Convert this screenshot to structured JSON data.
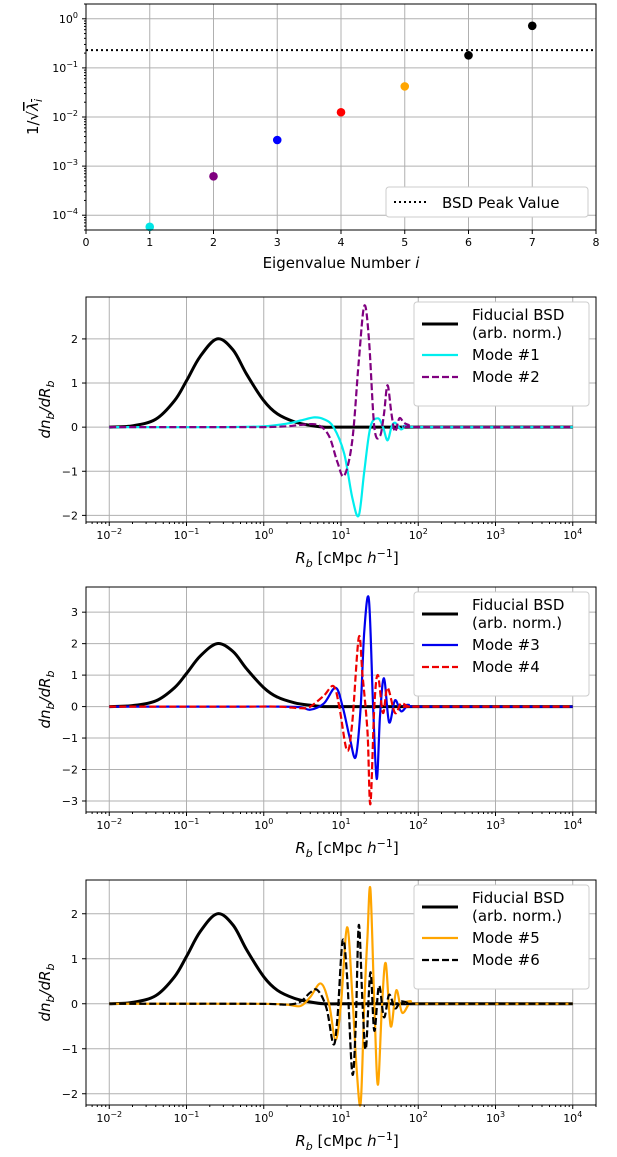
{
  "chart_data": [
    {
      "type": "scatter",
      "xlabel_prefix": "Eigenvalue Number ",
      "xlabel_var": "i",
      "ylabel": "1/√λᵢ",
      "xlim": [
        0,
        8
      ],
      "ylim": [
        5e-05,
        2
      ],
      "yscale": "log",
      "x_ticks": [
        "0",
        "1",
        "2",
        "3",
        "4",
        "5",
        "6",
        "7",
        "8"
      ],
      "y_ticks": [
        {
          "value": 1,
          "mant": "10",
          "exp": "0"
        },
        {
          "value": 0.1,
          "mant": "10",
          "exp": "−1"
        },
        {
          "value": 0.01,
          "mant": "10",
          "exp": "−2"
        },
        {
          "value": 0.001,
          "mant": "10",
          "exp": "−3"
        },
        {
          "value": 0.0001,
          "mant": "10",
          "exp": "−4"
        }
      ],
      "grid": true,
      "points": [
        {
          "x": 1,
          "y": 5.8e-05,
          "color": "#00e5e5"
        },
        {
          "x": 2,
          "y": 0.00062,
          "color": "#800080"
        },
        {
          "x": 3,
          "y": 0.0034,
          "color": "#0000ff"
        },
        {
          "x": 4,
          "y": 0.0125,
          "color": "#ff0000"
        },
        {
          "x": 5,
          "y": 0.042,
          "color": "#ffa500"
        },
        {
          "x": 6,
          "y": 0.18,
          "color": "#000000"
        },
        {
          "x": 7,
          "y": 0.72,
          "color": "#000000"
        }
      ],
      "hline": {
        "y": 0.23,
        "style": "dotted",
        "color": "#000000"
      },
      "legend": {
        "position": "lower-right",
        "entries": [
          {
            "label": "BSD Peak Value",
            "style": "dotted",
            "color": "#000000"
          }
        ]
      }
    },
    {
      "type": "line",
      "xscale": "log",
      "xlim": [
        0.005,
        20000
      ],
      "ylim": [
        -2.15,
        2.95
      ],
      "x_ticks": [
        {
          "mant": "10",
          "exp": "−2"
        },
        {
          "mant": "10",
          "exp": "−1"
        },
        {
          "mant": "10",
          "exp": "0"
        },
        {
          "mant": "10",
          "exp": "1"
        },
        {
          "mant": "10",
          "exp": "2"
        },
        {
          "mant": "10",
          "exp": "3"
        },
        {
          "mant": "10",
          "exp": "4"
        }
      ],
      "y_ticks": [
        "−2",
        "−1",
        "0",
        "1",
        "2"
      ],
      "ylabel": "dnb/dRb",
      "xlabel": "Rb [cMpc h−1]",
      "grid": true,
      "legend": {
        "position": "top-right",
        "entries": [
          {
            "label": "Fiducial BSD",
            "label2": "(arb. norm.)",
            "color": "#000000",
            "style": "solid"
          },
          {
            "label": "Mode #1",
            "color": "#00eeee",
            "style": "solid"
          },
          {
            "label": "Mode #2",
            "color": "#800080",
            "style": "dashed"
          }
        ]
      },
      "series": [
        {
          "name": "Fiducial BSD (arb. norm.)",
          "color": "#000000",
          "style": "solid",
          "x": [
            0.01,
            0.02,
            0.04,
            0.07,
            0.1,
            0.15,
            0.25,
            0.4,
            0.6,
            1,
            1.5,
            2.5,
            4,
            6,
            10,
            20,
            100,
            10000
          ],
          "y": [
            0.0,
            0.03,
            0.18,
            0.6,
            1.05,
            1.6,
            2.0,
            1.75,
            1.2,
            0.6,
            0.3,
            0.12,
            0.04,
            0.0,
            0.0,
            0.0,
            0.0,
            0.0
          ]
        },
        {
          "name": "Mode #1",
          "color": "#00eeee",
          "style": "solid",
          "x": [
            0.01,
            0.3,
            1,
            2,
            3,
            4.5,
            6,
            8,
            11,
            14,
            17,
            20,
            24,
            30,
            35,
            40,
            45,
            50,
            60,
            70,
            100,
            10000
          ],
          "y": [
            0.0,
            0.0,
            0.02,
            0.08,
            0.15,
            0.22,
            0.18,
            0.0,
            -0.6,
            -1.6,
            -2.0,
            -1.0,
            0.0,
            0.2,
            0.0,
            -0.3,
            0.0,
            0.1,
            -0.05,
            0.03,
            0.0,
            0.0
          ]
        },
        {
          "name": "Mode #2",
          "color": "#800080",
          "style": "dashed",
          "x": [
            0.01,
            0.3,
            1,
            2,
            3,
            5,
            7,
            9,
            11,
            14,
            17,
            20,
            23,
            27,
            32,
            36,
            40,
            45,
            50,
            57,
            65,
            75,
            100,
            10000
          ],
          "y": [
            0.0,
            0.0,
            0.0,
            0.02,
            0.05,
            0.05,
            -0.2,
            -0.8,
            -1.1,
            -0.3,
            1.5,
            2.75,
            2.0,
            0.0,
            -0.2,
            0.3,
            0.95,
            0.3,
            -0.1,
            0.2,
            0.1,
            0.05,
            0.0,
            0.0
          ]
        }
      ]
    },
    {
      "type": "line",
      "xscale": "log",
      "xlim": [
        0.005,
        20000
      ],
      "ylim": [
        -3.35,
        3.8
      ],
      "x_ticks": [
        {
          "mant": "10",
          "exp": "−2"
        },
        {
          "mant": "10",
          "exp": "−1"
        },
        {
          "mant": "10",
          "exp": "0"
        },
        {
          "mant": "10",
          "exp": "1"
        },
        {
          "mant": "10",
          "exp": "2"
        },
        {
          "mant": "10",
          "exp": "3"
        },
        {
          "mant": "10",
          "exp": "4"
        }
      ],
      "y_ticks": [
        "−3",
        "−2",
        "−1",
        "0",
        "1",
        "2",
        "3"
      ],
      "ylabel": "dnb/dRb",
      "xlabel": "Rb [cMpc h−1]",
      "grid": true,
      "legend": {
        "position": "top-right",
        "entries": [
          {
            "label": "Fiducial BSD",
            "label2": "(arb. norm.)",
            "color": "#000000",
            "style": "solid"
          },
          {
            "label": "Mode #3",
            "color": "#0000ee",
            "style": "solid"
          },
          {
            "label": "Mode #4",
            "color": "#ee0000",
            "style": "dashed"
          }
        ]
      },
      "series": [
        {
          "name": "Fiducial BSD (arb. norm.)",
          "color": "#000000",
          "style": "solid",
          "x": [
            0.01,
            0.02,
            0.04,
            0.07,
            0.1,
            0.15,
            0.25,
            0.4,
            0.6,
            1,
            1.5,
            2.5,
            4,
            6,
            10,
            20,
            100,
            10000
          ],
          "y": [
            0.0,
            0.03,
            0.18,
            0.6,
            1.05,
            1.6,
            2.0,
            1.75,
            1.2,
            0.6,
            0.3,
            0.12,
            0.04,
            0.0,
            0.0,
            0.0,
            0.0,
            0.0
          ]
        },
        {
          "name": "Mode #3",
          "color": "#0000ee",
          "style": "solid",
          "x": [
            0.01,
            0.5,
            1.5,
            3,
            4,
            6,
            8.5,
            10.5,
            13,
            15.5,
            18,
            20,
            23,
            26,
            29,
            32,
            36,
            42,
            50,
            60,
            75,
            100,
            10000
          ],
          "y": [
            0.0,
            0.0,
            0.0,
            -0.02,
            -0.1,
            0.1,
            0.6,
            0.0,
            -1.0,
            -1.6,
            0.0,
            2.4,
            3.4,
            0.0,
            -2.3,
            -0.3,
            0.9,
            -0.5,
            0.2,
            -0.15,
            0.05,
            0.0,
            0.0
          ]
        },
        {
          "name": "Mode #4",
          "color": "#ee0000",
          "style": "dashed",
          "x": [
            0.01,
            0.5,
            1.5,
            3,
            4,
            6,
            8,
            9.5,
            12,
            14,
            17,
            19,
            22,
            24,
            27,
            30,
            35,
            40,
            50,
            60,
            75,
            100,
            10000
          ],
          "y": [
            0.0,
            0.0,
            0.0,
            -0.05,
            0.0,
            0.35,
            0.65,
            0.0,
            -1.4,
            -0.5,
            2.2,
            1.0,
            -0.8,
            -3.1,
            0.0,
            1.0,
            -0.2,
            0.6,
            -0.2,
            0.1,
            0.0,
            0.0,
            0.0
          ]
        }
      ]
    },
    {
      "type": "line",
      "xscale": "log",
      "xlim": [
        0.005,
        20000
      ],
      "ylim": [
        -2.25,
        2.75
      ],
      "x_ticks": [
        {
          "mant": "10",
          "exp": "−2"
        },
        {
          "mant": "10",
          "exp": "−1"
        },
        {
          "mant": "10",
          "exp": "0"
        },
        {
          "mant": "10",
          "exp": "1"
        },
        {
          "mant": "10",
          "exp": "2"
        },
        {
          "mant": "10",
          "exp": "3"
        },
        {
          "mant": "10",
          "exp": "4"
        }
      ],
      "y_ticks": [
        "−2",
        "−1",
        "0",
        "1",
        "2"
      ],
      "ylabel": "dnb/dRb",
      "xlabel": "Rb [cMpc h−1]",
      "grid": true,
      "legend": {
        "position": "top-right",
        "entries": [
          {
            "label": "Fiducial BSD",
            "label2": "(arb. norm.)",
            "color": "#000000",
            "style": "solid"
          },
          {
            "label": "Mode #5",
            "color": "#ffa500",
            "style": "solid"
          },
          {
            "label": "Mode #6",
            "color": "#000000",
            "style": "dashed"
          }
        ]
      },
      "series": [
        {
          "name": "Fiducial BSD (arb. norm.)",
          "color": "#000000",
          "style": "solid",
          "x": [
            0.01,
            0.02,
            0.04,
            0.07,
            0.1,
            0.15,
            0.25,
            0.4,
            0.6,
            1,
            1.5,
            2.5,
            4,
            6,
            10,
            20,
            100,
            10000
          ],
          "y": [
            0.0,
            0.03,
            0.18,
            0.6,
            1.05,
            1.6,
            2.0,
            1.75,
            1.2,
            0.6,
            0.3,
            0.12,
            0.04,
            0.0,
            0.0,
            0.0,
            0.0,
            0.0
          ]
        },
        {
          "name": "Mode #5",
          "color": "#ffa500",
          "style": "solid",
          "x": [
            0.01,
            0.8,
            2,
            3,
            4,
            5.5,
            7,
            8.5,
            10,
            12,
            14,
            16,
            18,
            20,
            22,
            24,
            27,
            30,
            34,
            38,
            44,
            52,
            62,
            80,
            100,
            10000
          ],
          "y": [
            0.0,
            0.0,
            -0.02,
            -0.05,
            0.15,
            0.45,
            0.0,
            -0.8,
            0.0,
            1.7,
            0.2,
            -1.5,
            -2.2,
            0.0,
            1.5,
            2.55,
            0.0,
            -1.8,
            0.0,
            0.9,
            -0.5,
            0.3,
            -0.2,
            0.05,
            0.0,
            0.0
          ]
        },
        {
          "name": "Mode #6",
          "color": "#000000",
          "style": "dashed",
          "x": [
            0.01,
            0.8,
            2,
            3,
            4,
            5,
            6.5,
            8,
            9,
            10.5,
            12,
            14,
            15.5,
            17,
            19,
            21,
            24,
            27,
            31,
            36,
            42,
            50,
            60,
            80,
            100,
            10000
          ],
          "y": [
            0.0,
            0.0,
            -0.02,
            0.05,
            0.25,
            0.3,
            -0.1,
            -0.9,
            -0.3,
            1.4,
            0.6,
            -1.55,
            -0.5,
            1.75,
            0.0,
            -1.0,
            0.7,
            -0.6,
            0.4,
            -0.3,
            0.2,
            -0.1,
            0.05,
            0.0,
            0.0,
            0.0
          ]
        }
      ]
    }
  ]
}
